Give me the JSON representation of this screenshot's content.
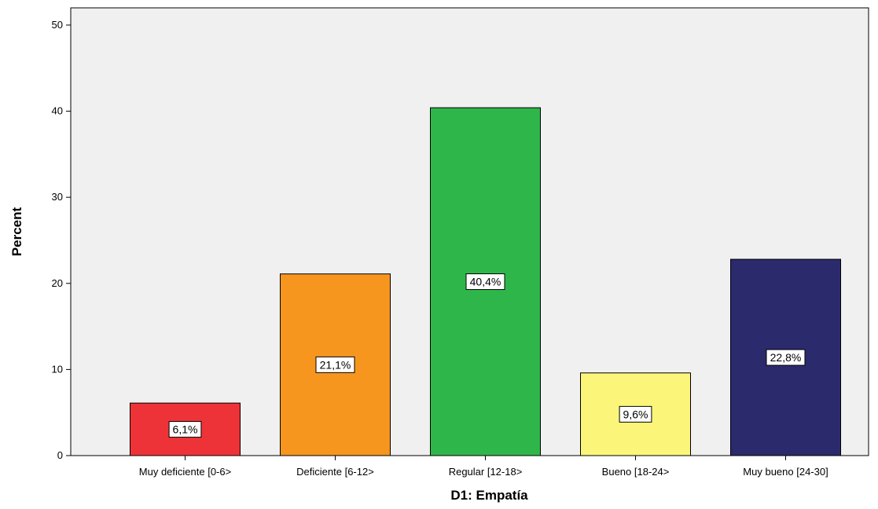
{
  "chart_data": {
    "type": "bar",
    "title": "",
    "xlabel": "D1: Empatía",
    "ylabel": "Percent",
    "ylim": [
      0,
      52
    ],
    "yticks": [
      0,
      10,
      20,
      30,
      40,
      50
    ],
    "grid": false,
    "legend": "none",
    "categories": [
      "Muy deficiente [0-6>",
      "Deficiente [6-12>",
      "Regular [12-18>",
      "Bueno [18-24>",
      "Muy bueno [24-30]"
    ],
    "values": [
      6.1,
      21.1,
      40.4,
      9.6,
      22.8
    ],
    "data_labels": [
      "6,1%",
      "21,1%",
      "40,4%",
      "9,6%",
      "22,8%"
    ],
    "colors": [
      "#ee3338",
      "#f7961e",
      "#2fb64a",
      "#fbf57a",
      "#2a2a6d"
    ],
    "plot_background": "#f0f0f0"
  }
}
